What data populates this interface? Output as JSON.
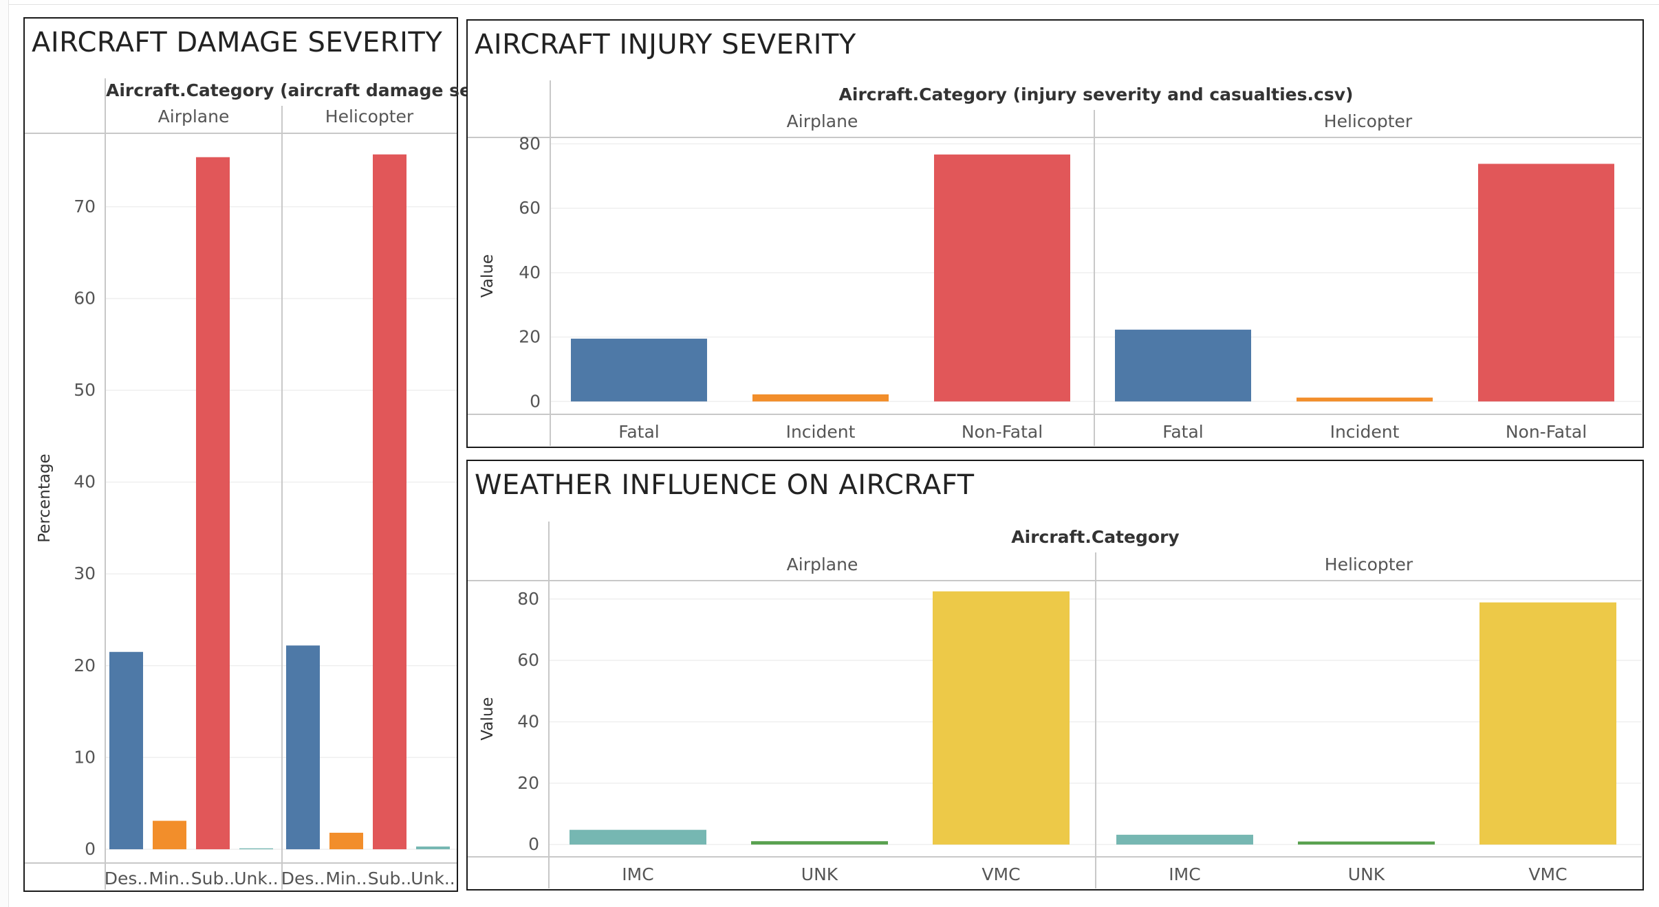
{
  "dashboard": {
    "panels": [
      {
        "id": "damage",
        "title": "AIRCRAFT DAMAGE SEVERITY"
      },
      {
        "id": "injury",
        "title": "AIRCRAFT INJURY SEVERITY"
      },
      {
        "id": "weather",
        "title": "WEATHER INFLUENCE ON AIRCRAFT"
      }
    ]
  },
  "chart_data": [
    {
      "id": "damage",
      "type": "bar",
      "column_header": "Aircraft.Category (aircraft damage severity..",
      "panes": [
        "Airplane",
        "Helicopter"
      ],
      "categories": [
        "Des..",
        "Min..",
        "Sub..",
        "Unk.."
      ],
      "ylabel": "Percentage",
      "ylim": [
        -1.5,
        78
      ],
      "yticks": [
        0,
        10,
        20,
        30,
        40,
        50,
        60,
        70
      ],
      "colors": [
        "#4e79a7",
        "#f28e2b",
        "#e15759",
        "#76b7b2"
      ],
      "values": [
        [
          21.5,
          3.1,
          75.4,
          0.1
        ],
        [
          22.2,
          1.8,
          75.7,
          0.3
        ]
      ],
      "grid": true
    },
    {
      "id": "injury",
      "type": "bar",
      "column_header": "Aircraft.Category (injury severity and casualties.csv)",
      "panes": [
        "Airplane",
        "Helicopter"
      ],
      "categories": [
        "Fatal",
        "Incident",
        "Non-Fatal"
      ],
      "ylabel": "Value",
      "ylim": [
        -4,
        82
      ],
      "yticks": [
        0,
        20,
        40,
        60,
        80
      ],
      "colors": [
        "#4e79a7",
        "#f28e2b",
        "#e15759"
      ],
      "values": [
        [
          19.5,
          2.2,
          76.7
        ],
        [
          22.3,
          1.2,
          73.8
        ]
      ],
      "grid": true
    },
    {
      "id": "weather",
      "type": "bar",
      "column_header": "Aircraft.Category",
      "panes": [
        "Airplane",
        "Helicopter"
      ],
      "categories": [
        "IMC",
        "UNK",
        "VMC"
      ],
      "ylabel": "Value",
      "ylim": [
        -4,
        86
      ],
      "yticks": [
        0,
        20,
        40,
        60,
        80
      ],
      "colors": [
        "#76b7b2",
        "#59a14f",
        "#edc948"
      ],
      "values": [
        [
          4.8,
          1.1,
          82.5
        ],
        [
          3.2,
          1.0,
          78.9
        ]
      ],
      "grid": true
    }
  ]
}
